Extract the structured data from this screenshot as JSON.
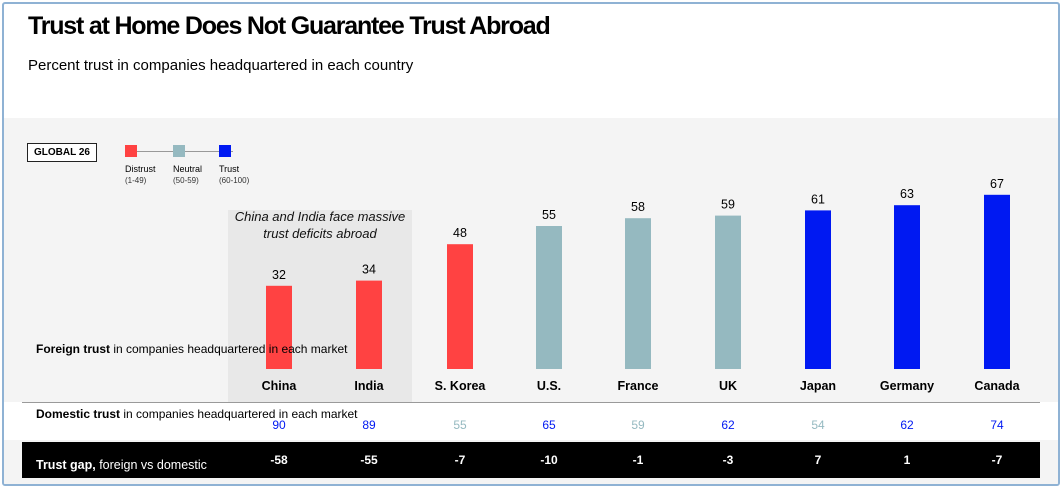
{
  "title": "Trust at Home Does Not Guarantee Trust Abroad",
  "subtitle": "Percent trust in companies headquartered in each country",
  "global_badge": "GLOBAL  26",
  "legend": [
    {
      "label": "Distrust",
      "range": "(1-49)",
      "color": "#ff4242"
    },
    {
      "label": "Neutral",
      "range": "(50-59)",
      "color": "#95b9c0"
    },
    {
      "label": "Trust",
      "range": "(60-100)",
      "color": "#0019f2"
    }
  ],
  "annotation": "China and India face massive trust deficits abroad",
  "rows": {
    "foreign": {
      "bold": "Foreign trust",
      "rest": " in companies headquartered in each market"
    },
    "domestic": {
      "bold": "Domestic trust",
      "rest": " in companies headquartered in each market"
    },
    "gap": {
      "bold": "Trust gap,",
      "rest": " foreign vs domestic"
    }
  },
  "colors": {
    "distrust": "#ff4242",
    "neutral": "#95b9c0",
    "trust": "#0019f2",
    "highlight": "#e8e8e8",
    "gap_bg": "#000000"
  },
  "chart_data": {
    "type": "bar",
    "categories": [
      "China",
      "India",
      "S. Korea",
      "U.S.",
      "France",
      "UK",
      "Japan",
      "Germany",
      "Canada"
    ],
    "values": [
      32,
      34,
      48,
      55,
      58,
      59,
      61,
      63,
      67
    ],
    "domestic": [
      90,
      89,
      55,
      65,
      59,
      62,
      54,
      62,
      74
    ],
    "gap": [
      "-58",
      "-55",
      "-7",
      "-10",
      "-1",
      "-3",
      "7",
      "1",
      "-7"
    ],
    "ylim": [
      0,
      100
    ]
  }
}
